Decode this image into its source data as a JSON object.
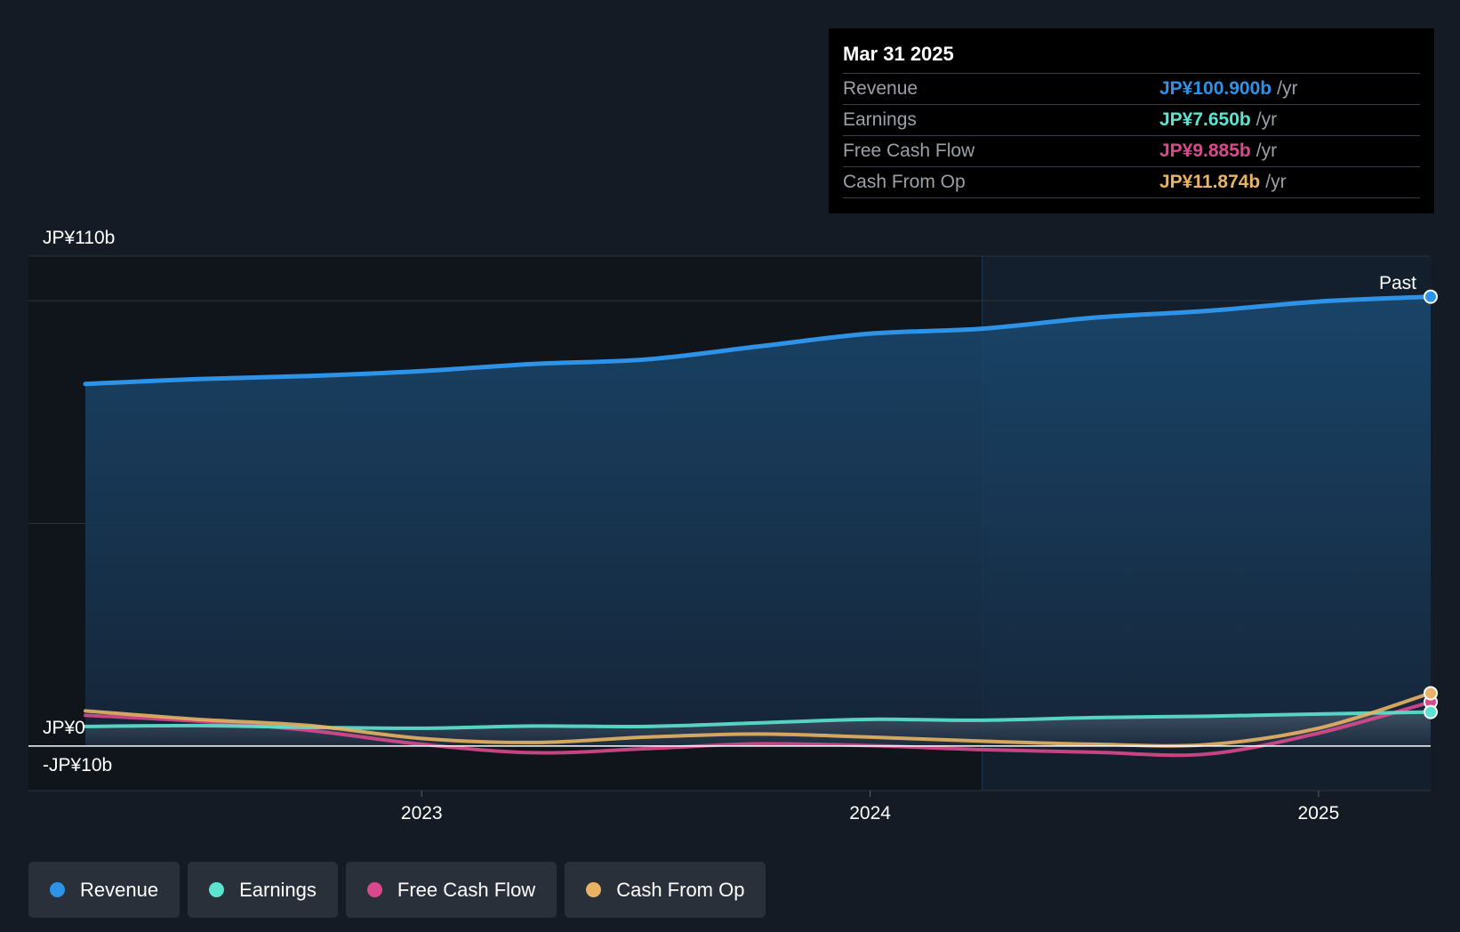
{
  "colors": {
    "revenue": "#2e93e6",
    "earnings": "#5de4d0",
    "free_cash_flow": "#d9498e",
    "cash_from_op": "#e8b463"
  },
  "tooltip": {
    "date": "Mar 31 2025",
    "rows": [
      {
        "label": "Revenue",
        "value": "JP¥100.900b",
        "unit": "/yr"
      },
      {
        "label": "Earnings",
        "value": "JP¥7.650b",
        "unit": "/yr"
      },
      {
        "label": "Free Cash Flow",
        "value": "JP¥9.885b",
        "unit": "/yr"
      },
      {
        "label": "Cash From Op",
        "value": "JP¥11.874b",
        "unit": "/yr"
      }
    ]
  },
  "legend": [
    {
      "label": "Revenue",
      "icon": "revenue-dot"
    },
    {
      "label": "Earnings",
      "icon": "earnings-dot"
    },
    {
      "label": "Free Cash Flow",
      "icon": "free-cash-flow-dot"
    },
    {
      "label": "Cash From Op",
      "icon": "cash-from-op-dot"
    }
  ],
  "chart_data": {
    "type": "area",
    "x_ticks": [
      {
        "label": "2023",
        "x": 2023.0
      },
      {
        "label": "2024",
        "x": 2024.0
      },
      {
        "label": "2025",
        "x": 2025.0
      }
    ],
    "y_ticks": [
      {
        "label": "JP¥110b",
        "y": 110
      },
      {
        "label": "JP¥0",
        "y": 0
      },
      {
        "label": "-JP¥10b",
        "y": -10
      }
    ],
    "ylim": [
      -10,
      110
    ],
    "xlim": [
      2022.12,
      2025.25
    ],
    "past_label": "Past",
    "past_start_x": 2024.25,
    "series": [
      {
        "name": "Revenue",
        "key": "revenue",
        "area": true,
        "points": [
          [
            2022.25,
            81.3
          ],
          [
            2022.5,
            82.4
          ],
          [
            2022.75,
            83.1
          ],
          [
            2023.0,
            84.2
          ],
          [
            2023.25,
            85.8
          ],
          [
            2023.5,
            86.8
          ],
          [
            2023.75,
            89.7
          ],
          [
            2024.0,
            92.6
          ],
          [
            2024.25,
            93.7
          ],
          [
            2024.5,
            96.2
          ],
          [
            2024.75,
            97.7
          ],
          [
            2025.0,
            99.8
          ],
          [
            2025.25,
            100.9
          ]
        ]
      },
      {
        "name": "Earnings",
        "key": "earnings",
        "area": false,
        "points": [
          [
            2022.25,
            4.4
          ],
          [
            2022.5,
            4.6
          ],
          [
            2022.75,
            4.2
          ],
          [
            2023.0,
            4.0
          ],
          [
            2023.25,
            4.5
          ],
          [
            2023.5,
            4.4
          ],
          [
            2023.75,
            5.2
          ],
          [
            2024.0,
            6.0
          ],
          [
            2024.25,
            5.8
          ],
          [
            2024.5,
            6.4
          ],
          [
            2024.75,
            6.7
          ],
          [
            2025.0,
            7.2
          ],
          [
            2025.25,
            7.65
          ]
        ]
      },
      {
        "name": "Free Cash Flow",
        "key": "free_cash_flow",
        "area": false,
        "points": [
          [
            2022.25,
            6.9
          ],
          [
            2022.5,
            5.6
          ],
          [
            2022.75,
            3.5
          ],
          [
            2023.0,
            0.4
          ],
          [
            2023.25,
            -1.5
          ],
          [
            2023.5,
            -0.6
          ],
          [
            2023.75,
            0.5
          ],
          [
            2024.0,
            0.1
          ],
          [
            2024.25,
            -0.8
          ],
          [
            2024.5,
            -1.4
          ],
          [
            2024.75,
            -1.8
          ],
          [
            2025.0,
            2.9
          ],
          [
            2025.25,
            9.885
          ]
        ]
      },
      {
        "name": "Cash From Op",
        "key": "cash_from_op",
        "area": false,
        "points": [
          [
            2022.25,
            7.9
          ],
          [
            2022.5,
            6.0
          ],
          [
            2022.75,
            4.6
          ],
          [
            2023.0,
            1.7
          ],
          [
            2023.25,
            0.8
          ],
          [
            2023.5,
            2.0
          ],
          [
            2023.75,
            2.7
          ],
          [
            2024.0,
            2.0
          ],
          [
            2024.25,
            1.1
          ],
          [
            2024.5,
            0.4
          ],
          [
            2024.75,
            0.3
          ],
          [
            2025.0,
            4.0
          ],
          [
            2025.25,
            11.874
          ]
        ]
      }
    ]
  }
}
